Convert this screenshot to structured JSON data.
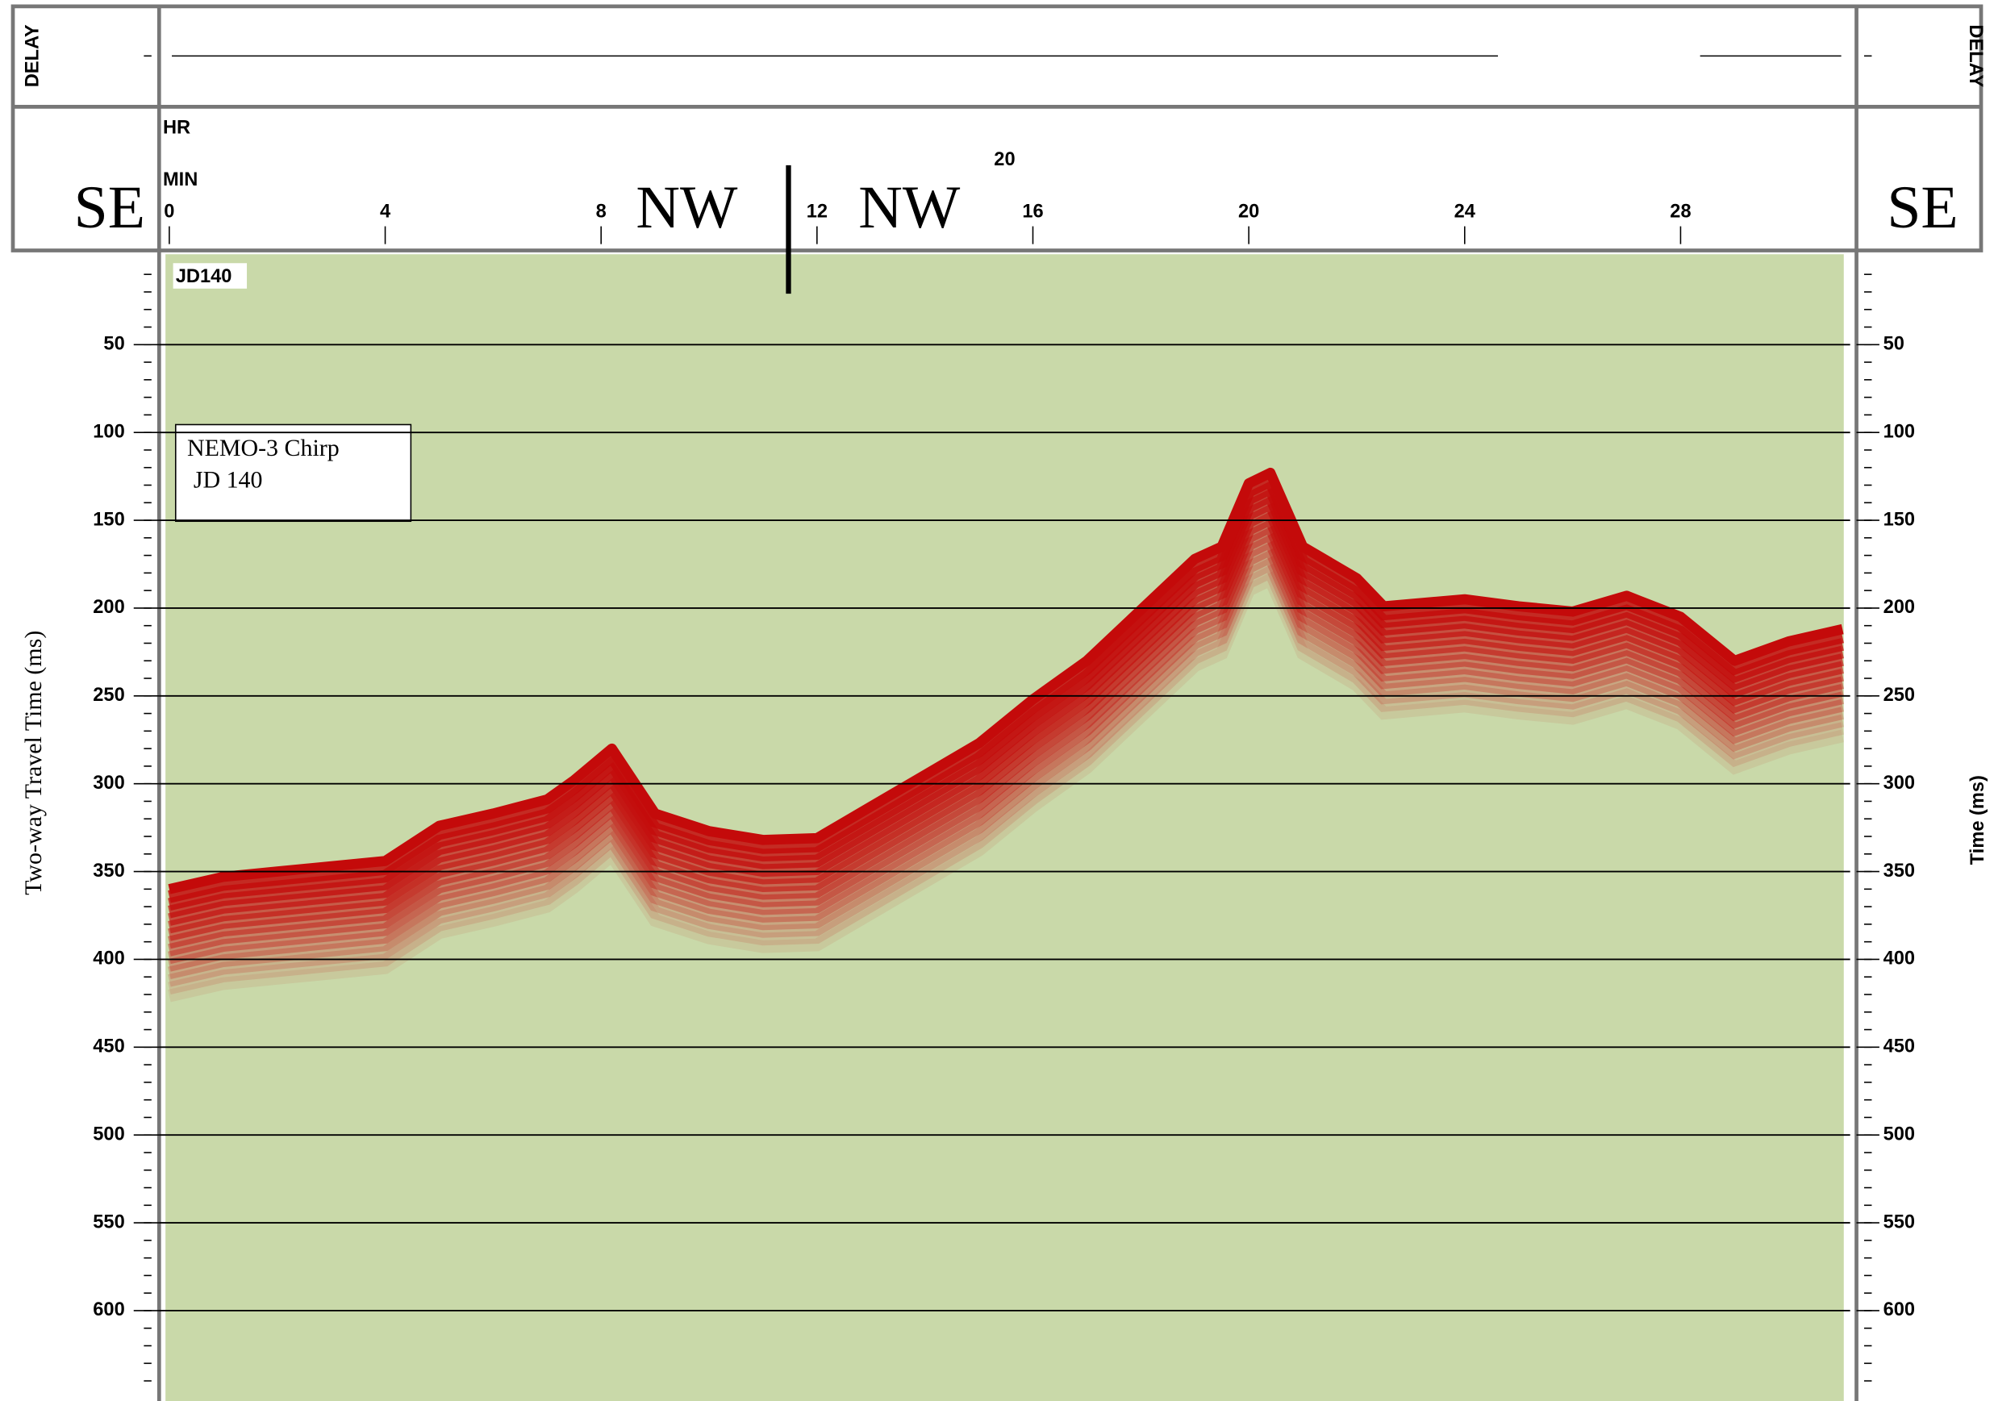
{
  "chart_data": {
    "type": "seismic",
    "delay_label": "DELAY",
    "hour_axis_label": "HR",
    "minute_axis_label": "MIN",
    "hour_marker": "20",
    "direction_labels": [
      "SE",
      "NW",
      "NW",
      "SE"
    ],
    "line_label": "JD140",
    "annotation": [
      "NEMO-3 Chirp",
      "JD 140"
    ],
    "ylabel": "Two-way Travel Time (ms)",
    "y2label": "Time (ms)",
    "x": [
      0,
      1,
      2,
      4,
      5,
      6,
      7,
      7.5,
      8.2,
      9,
      10,
      11,
      12,
      13,
      14,
      15,
      16,
      17,
      18,
      19,
      19.5,
      20,
      20.4,
      21,
      22,
      22.5,
      24,
      25,
      26,
      27,
      28,
      29,
      30,
      31
    ],
    "values": [
      360,
      353,
      350,
      344,
      324,
      317,
      309,
      298,
      280,
      317,
      327,
      332,
      331,
      313,
      295,
      277,
      252,
      230,
      201,
      172,
      165,
      129,
      123,
      165,
      183,
      199,
      195,
      199,
      202,
      193,
      205,
      230,
      219,
      212
    ],
    "xlim": [
      0,
      31
    ],
    "xticks": [
      0,
      4,
      8,
      12,
      16,
      20,
      24,
      28
    ],
    "ylim": [
      0,
      650
    ],
    "yticks": [
      50,
      100,
      150,
      200,
      250,
      300,
      350,
      400,
      450,
      500,
      550,
      600
    ],
    "y_minor_tick_interval": 10,
    "grid": true,
    "color": "#c40a0a",
    "background": "#c9d9a9"
  }
}
